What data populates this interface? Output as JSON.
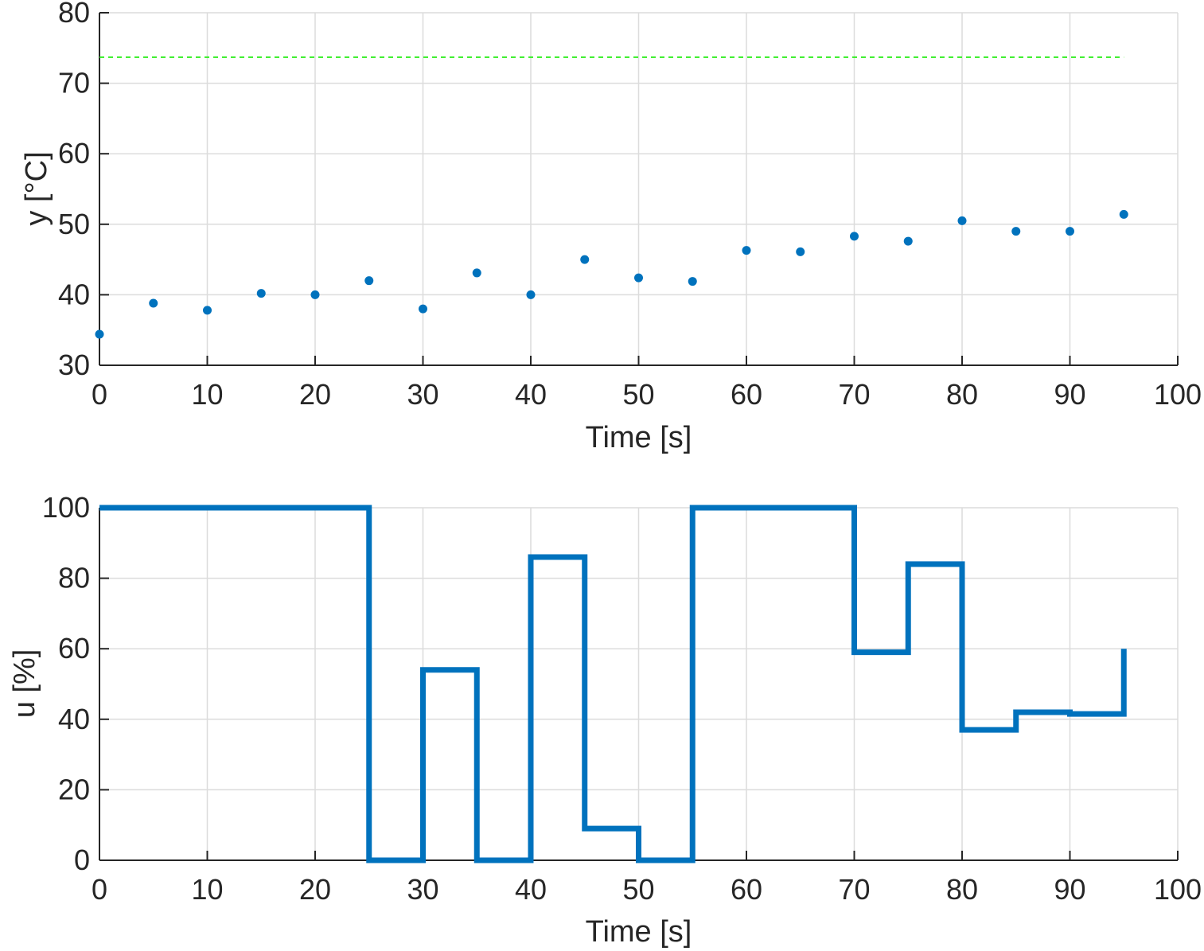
{
  "chart_data": [
    {
      "type": "scatter",
      "xlabel": "Time [s]",
      "ylabel": "y [°C]",
      "xlim": [
        0,
        100
      ],
      "ylim": [
        30,
        80
      ],
      "xticks": [
        0,
        10,
        20,
        30,
        40,
        50,
        60,
        70,
        80,
        90,
        100
      ],
      "yticks": [
        30,
        40,
        50,
        60,
        70,
        80
      ],
      "grid": true,
      "series": [
        {
          "kind": "scatter",
          "color": "#0072BD",
          "x": [
            0,
            5,
            10,
            15,
            20,
            25,
            30,
            35,
            40,
            45,
            50,
            55,
            60,
            65,
            70,
            75,
            80,
            85,
            90,
            95
          ],
          "y": [
            34.4,
            38.8,
            37.8,
            40.2,
            40.0,
            42.0,
            38.0,
            43.1,
            40.0,
            45.0,
            42.4,
            41.9,
            46.3,
            46.1,
            48.3,
            47.6,
            50.5,
            49.0,
            49.0,
            51.4
          ]
        },
        {
          "kind": "dashed-line",
          "color": "#33ee22",
          "x": [
            0,
            95
          ],
          "y": [
            73.7,
            73.7
          ]
        }
      ]
    },
    {
      "type": "line",
      "step": true,
      "xlabel": "Time [s]",
      "ylabel": "u [%]",
      "xlim": [
        0,
        100
      ],
      "ylim": [
        0,
        100
      ],
      "xticks": [
        0,
        10,
        20,
        30,
        40,
        50,
        60,
        70,
        80,
        90,
        100
      ],
      "yticks": [
        0,
        20,
        40,
        60,
        80,
        100
      ],
      "grid": true,
      "series": [
        {
          "kind": "stairs",
          "color": "#0072BD",
          "x": [
            0,
            5,
            10,
            15,
            20,
            25,
            30,
            35,
            40,
            45,
            50,
            55,
            60,
            65,
            70,
            75,
            80,
            85,
            90,
            95
          ],
          "y": [
            100,
            100,
            100,
            100,
            100,
            0,
            54,
            0,
            86,
            9,
            0,
            100,
            100,
            100,
            59,
            84,
            37,
            42,
            41.5,
            60
          ]
        }
      ]
    }
  ]
}
